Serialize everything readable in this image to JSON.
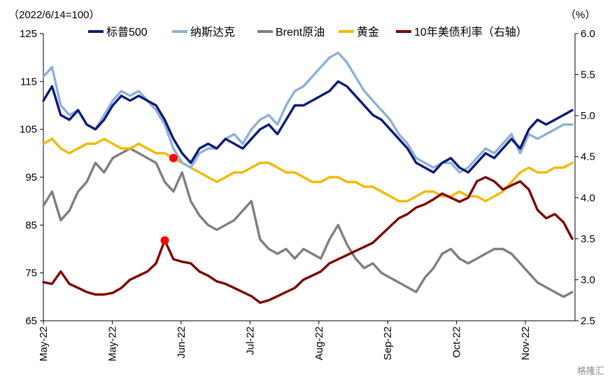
{
  "chart_data": {
    "type": "line",
    "left_unit_label": "（2022/6/14=100）",
    "right_unit_label": "（%）",
    "ylim_left": [
      65,
      125
    ],
    "yticks_left": [
      "65",
      "75",
      "85",
      "95",
      "105",
      "115",
      "125"
    ],
    "ylim_right": [
      2.5,
      6.0
    ],
    "yticks_right": [
      "2.5",
      "3.0",
      "3.5",
      "4.0",
      "4.5",
      "5.0",
      "5.5",
      "6.0"
    ],
    "x_ticks": [
      "May-22",
      "May-22",
      "Jun-22",
      "Jul-22",
      "Aug-22",
      "Sep-22",
      "Oct-22",
      "Nov-22"
    ],
    "grid": false,
    "legend": "top",
    "colors": {
      "sp500": "#0a1a7a",
      "nasdaq": "#8fb0d8",
      "brent": "#7f7f7f",
      "gold": "#f5b800",
      "ust10y": "#800000",
      "marker": "#ff0000"
    },
    "series": [
      {
        "name": "标普500",
        "axis": "left",
        "key": "sp500",
        "values": [
          111,
          114,
          108,
          107,
          109,
          106,
          105,
          107,
          110,
          112,
          111,
          112,
          111,
          110,
          107,
          103,
          100,
          98,
          101,
          102,
          101,
          103,
          102,
          101,
          103,
          105,
          106,
          104,
          107,
          110,
          110,
          111,
          112,
          113,
          115,
          114,
          112,
          110,
          108,
          107,
          105,
          103,
          101,
          98,
          97,
          96,
          98,
          99,
          97,
          96,
          98,
          100,
          99,
          101,
          103,
          101,
          105,
          107,
          106,
          107,
          108,
          109
        ]
      },
      {
        "name": "纳斯达克",
        "axis": "left",
        "key": "nasdaq",
        "values": [
          116,
          118,
          110,
          108,
          109,
          106,
          105,
          108,
          111,
          113,
          112,
          113,
          111,
          109,
          106,
          101,
          98,
          97,
          100,
          101,
          101,
          103,
          104,
          102,
          105,
          107,
          108,
          106,
          110,
          113,
          114,
          116,
          118,
          120,
          121,
          119,
          116,
          113,
          111,
          109,
          107,
          104,
          102,
          99,
          98,
          97,
          98,
          98,
          96,
          97,
          99,
          101,
          100,
          102,
          104,
          100,
          104,
          103,
          104,
          105,
          106,
          106
        ]
      },
      {
        "name": "Brent原油",
        "axis": "left",
        "key": "brent",
        "values": [
          89,
          92,
          86,
          88,
          92,
          94,
          98,
          96,
          99,
          100,
          101,
          100,
          99,
          98,
          94,
          92,
          96,
          90,
          87,
          85,
          84,
          85,
          86,
          88,
          90,
          82,
          80,
          79,
          80,
          78,
          80,
          79,
          78,
          82,
          85,
          81,
          78,
          76,
          77,
          75,
          74,
          73,
          72,
          71,
          74,
          76,
          79,
          80,
          78,
          77,
          78,
          79,
          80,
          80,
          79,
          77,
          75,
          73,
          72,
          71,
          70,
          71
        ]
      },
      {
        "name": "黄金",
        "axis": "left",
        "key": "gold",
        "values": [
          102,
          103,
          101,
          100,
          101,
          102,
          102,
          103,
          102,
          101,
          101,
          102,
          101,
          100,
          100,
          99,
          98,
          97,
          96,
          95,
          94,
          95,
          96,
          96,
          97,
          98,
          98,
          97,
          96,
          96,
          95,
          94,
          94,
          95,
          95,
          94,
          94,
          93,
          93,
          92,
          91,
          90,
          90,
          91,
          92,
          92,
          91,
          91,
          92,
          91,
          91,
          90,
          91,
          92,
          94,
          96,
          97,
          96,
          96,
          97,
          97,
          98
        ]
      },
      {
        "name": "10年美债利率（右轴）",
        "axis": "right",
        "key": "ust10y",
        "values": [
          2.97,
          2.95,
          3.1,
          2.95,
          2.9,
          2.85,
          2.82,
          2.82,
          2.84,
          2.9,
          3.0,
          3.05,
          3.1,
          3.2,
          3.48,
          3.25,
          3.22,
          3.2,
          3.1,
          3.05,
          2.98,
          2.95,
          2.9,
          2.85,
          2.8,
          2.72,
          2.75,
          2.8,
          2.85,
          2.9,
          3.0,
          3.05,
          3.1,
          3.2,
          3.25,
          3.3,
          3.35,
          3.4,
          3.45,
          3.55,
          3.65,
          3.75,
          3.8,
          3.88,
          3.92,
          3.98,
          4.05,
          4.0,
          3.95,
          4.0,
          4.2,
          4.25,
          4.2,
          4.1,
          4.15,
          4.2,
          4.1,
          3.85,
          3.75,
          3.8,
          3.7,
          3.5
        ]
      }
    ],
    "markers": [
      {
        "series": "黄金",
        "index": 15
      },
      {
        "series": "10年美债利率（右轴）",
        "index": 14
      }
    ]
  },
  "watermark": "格隆汇"
}
